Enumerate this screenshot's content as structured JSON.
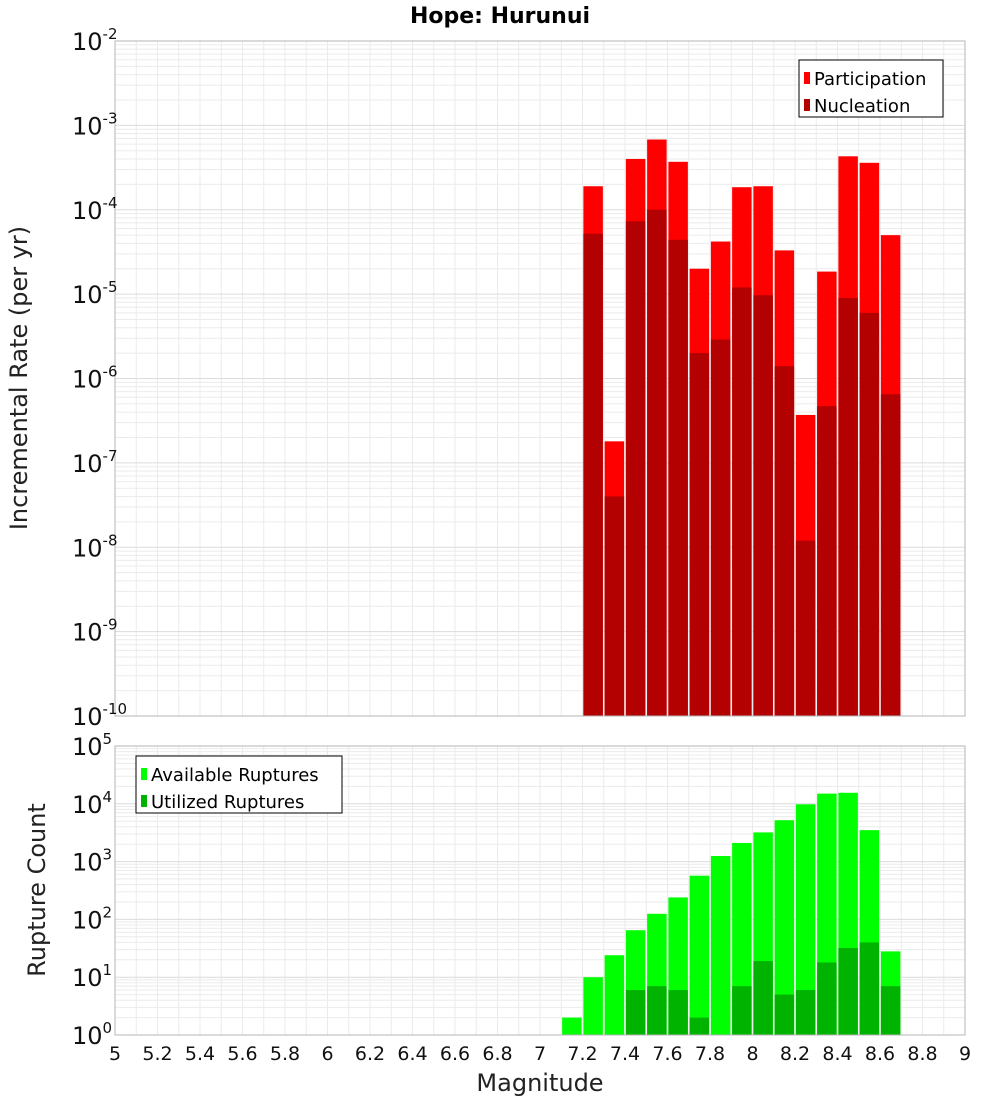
{
  "chart_data": [
    {
      "type": "bar",
      "title": "Hope: Hurunui",
      "xlabel": "",
      "ylabel": "Incremental Rate (per yr)",
      "xlim": [
        5,
        9
      ],
      "ylim": [
        1e-10,
        0.01
      ],
      "y_scale": "log",
      "grid": true,
      "legend_position": "top-right",
      "colors": {
        "participation": "#ff0000",
        "nucleation": "#b30000"
      },
      "series": [
        {
          "name": "Participation",
          "x": [
            7.25,
            7.35,
            7.45,
            7.55,
            7.65,
            7.75,
            7.85,
            7.95,
            8.05,
            8.15,
            8.25,
            8.35,
            8.45,
            8.55,
            8.65
          ],
          "values": [
            0.00019,
            1.8e-07,
            0.0004,
            0.00068,
            0.00037,
            2e-05,
            4.2e-05,
            0.000185,
            0.00019,
            3.3e-05,
            3.7e-07,
            1.85e-05,
            0.00043,
            0.00036,
            5e-05
          ]
        },
        {
          "name": "Nucleation",
          "x": [
            7.25,
            7.35,
            7.45,
            7.55,
            7.65,
            7.75,
            7.85,
            7.95,
            8.05,
            8.15,
            8.25,
            8.35,
            8.45,
            8.55,
            8.65
          ],
          "values": [
            5.2e-05,
            4e-08,
            7.3e-05,
            0.0001,
            4.4e-05,
            2e-06,
            2.9e-06,
            1.2e-05,
            9.7e-06,
            1.4e-06,
            1.2e-08,
            4.7e-07,
            9e-06,
            6e-06,
            6.5e-07
          ]
        }
      ],
      "y_ticks": [
        {
          "base": "10",
          "exp": "-10"
        },
        {
          "base": "10",
          "exp": "-9"
        },
        {
          "base": "10",
          "exp": "-8"
        },
        {
          "base": "10",
          "exp": "-7"
        },
        {
          "base": "10",
          "exp": "-6"
        },
        {
          "base": "10",
          "exp": "-5"
        },
        {
          "base": "10",
          "exp": "-4"
        },
        {
          "base": "10",
          "exp": "-3"
        },
        {
          "base": "10",
          "exp": "-2"
        }
      ]
    },
    {
      "type": "bar",
      "title": "",
      "xlabel": "Magnitude",
      "ylabel": "Rupture Count",
      "xlim": [
        5,
        9
      ],
      "ylim": [
        1,
        100000
      ],
      "y_scale": "log",
      "grid": true,
      "legend_position": "top-left",
      "colors": {
        "available": "#00ff00",
        "utilized": "#00b300"
      },
      "series": [
        {
          "name": "Available Ruptures",
          "x": [
            6.75,
            7.15,
            7.25,
            7.35,
            7.45,
            7.55,
            7.65,
            7.75,
            7.85,
            7.95,
            8.05,
            8.15,
            8.25,
            8.35,
            8.45,
            8.55,
            8.65
          ],
          "values": [
            1,
            2,
            10,
            24,
            65,
            125,
            240,
            570,
            1250,
            2100,
            3200,
            5200,
            9800,
            15000,
            15500,
            3500,
            28
          ]
        },
        {
          "name": "Utilized Ruptures",
          "x": [
            7.25,
            7.35,
            7.45,
            7.55,
            7.65,
            7.75,
            7.85,
            7.95,
            8.05,
            8.15,
            8.25,
            8.35,
            8.45,
            8.55,
            8.65
          ],
          "values": [
            1,
            1,
            6,
            7,
            6,
            2,
            1,
            7,
            19,
            5,
            6,
            18,
            32,
            40,
            7
          ]
        }
      ],
      "y_ticks": [
        {
          "base": "10",
          "exp": "0"
        },
        {
          "base": "10",
          "exp": "1"
        },
        {
          "base": "10",
          "exp": "2"
        },
        {
          "base": "10",
          "exp": "3"
        },
        {
          "base": "10",
          "exp": "4"
        },
        {
          "base": "10",
          "exp": "5"
        }
      ],
      "x_ticks": [
        "5",
        "5.2",
        "5.4",
        "5.6",
        "5.8",
        "6",
        "6.2",
        "6.4",
        "6.6",
        "6.8",
        "7",
        "7.2",
        "7.4",
        "7.6",
        "7.8",
        "8",
        "8.2",
        "8.4",
        "8.6",
        "8.8",
        "9"
      ]
    }
  ]
}
